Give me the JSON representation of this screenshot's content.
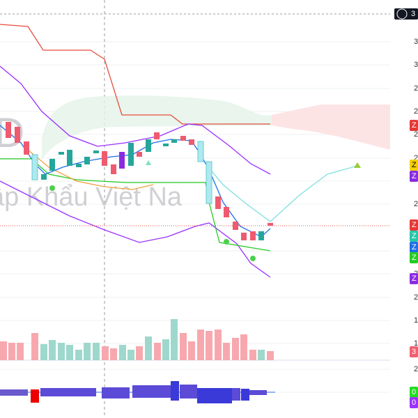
{
  "watermark": "ập Khẩu Việt Na",
  "axis_labels": [
    "3",
    "3",
    "2",
    "2",
    "2",
    "2",
    "2",
    "2",
    "2",
    "1",
    "1",
    "2"
  ],
  "badges": [
    "3",
    "Z",
    "Z",
    "Z",
    "Z",
    "Z",
    "Z",
    "Z",
    "Z",
    "3",
    "0",
    "0"
  ]
}
